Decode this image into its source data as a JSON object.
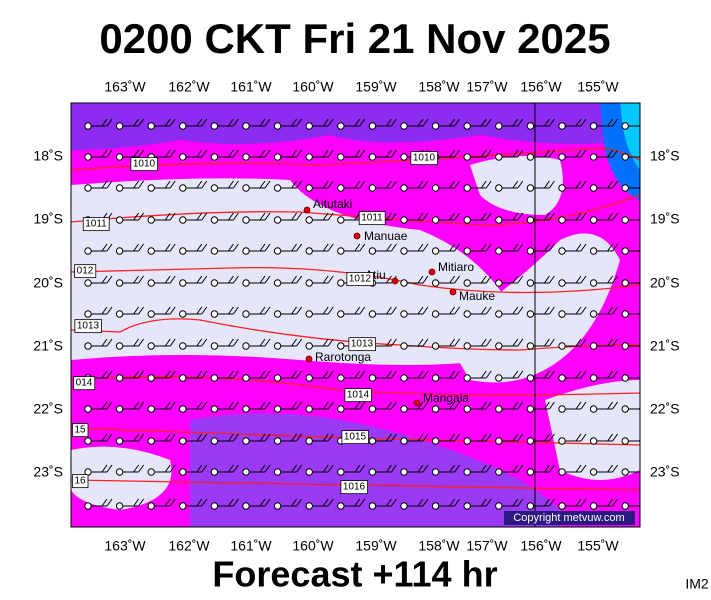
{
  "header": {
    "title": "0200 CKT Fri 21 Nov 2025"
  },
  "map": {
    "longitude_labels": [
      "163˚W",
      "162˚W",
      "161˚W",
      "160˚W",
      "159˚W",
      "158˚W",
      "157˚W",
      "156˚W",
      "155˚W"
    ],
    "latitude_labels": [
      "18˚S",
      "19˚S",
      "20˚S",
      "21˚S",
      "22˚S",
      "23˚S"
    ],
    "places": [
      "Aitutaki",
      "Manuae",
      "Mitiaro",
      "Atiu",
      "Mauke",
      "Rarotonga",
      "Mangaia"
    ],
    "isobar_labels": [
      "1010",
      "1010",
      "1011",
      "1011",
      "012",
      "1012",
      "1013",
      "1013",
      "014",
      "1014",
      "15",
      "1015",
      "16",
      "1016"
    ],
    "copyright": "Copyright metvuw.com"
  },
  "footer": {
    "forecast": "Forecast +114 hr",
    "image_id": "IM2"
  }
}
